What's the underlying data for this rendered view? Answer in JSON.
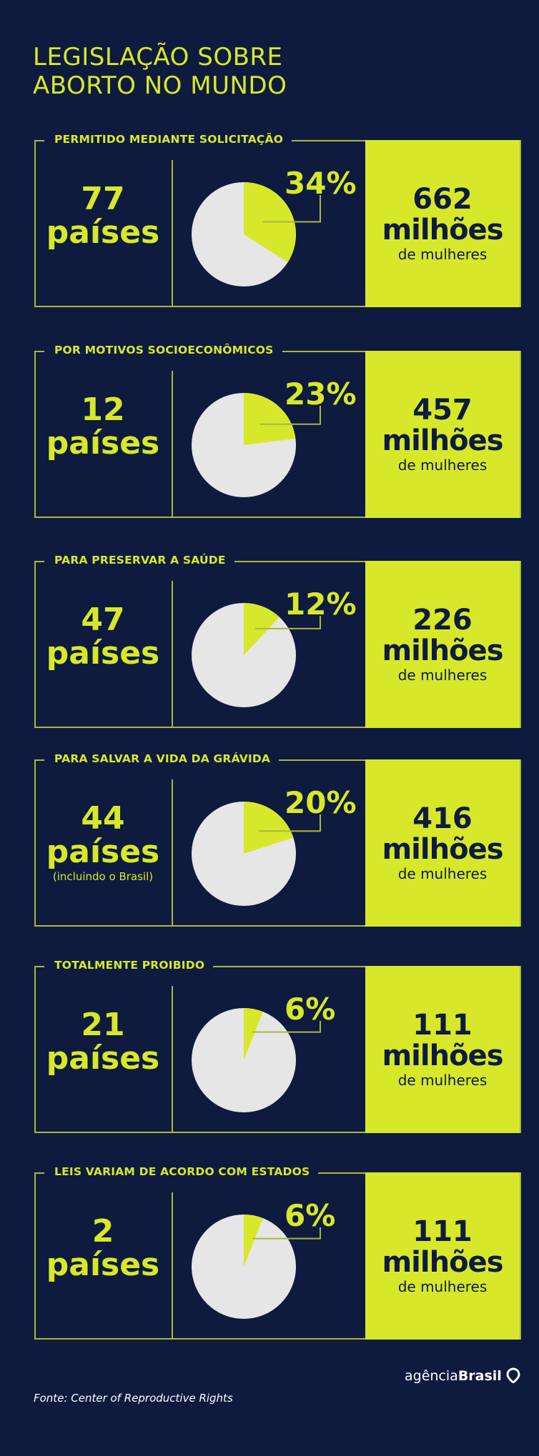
{
  "title_lines": [
    "LEGISLAÇÃO SOBRE",
    "ABORTO NO MUNDO"
  ],
  "colors": {
    "background": "#0e1b3f",
    "accent": "#d7e82a",
    "pie_base": "#e6e6e6",
    "frame": "#a9b83a"
  },
  "chart_data": [
    {
      "type": "pie",
      "category": "PERMITIDO MEDIANTE SOLICITAÇÃO",
      "countries": "77",
      "countries_unit": "países",
      "note": "",
      "percent": 34,
      "percent_label": "34%",
      "women": "662",
      "women_unit": "milhões",
      "women_suffix": "de mulheres"
    },
    {
      "type": "pie",
      "category": "POR MOTIVOS SOCIOECONÔMICOS",
      "countries": "12",
      "countries_unit": "países",
      "note": "",
      "percent": 23,
      "percent_label": "23%",
      "women": "457",
      "women_unit": "milhões",
      "women_suffix": "de mulheres"
    },
    {
      "type": "pie",
      "category": "PARA PRESERVAR A SAÚDE",
      "countries": "47",
      "countries_unit": "países",
      "note": "",
      "percent": 12,
      "percent_label": "12%",
      "women": "226",
      "women_unit": "milhões",
      "women_suffix": "de mulheres"
    },
    {
      "type": "pie",
      "category": "PARA SALVAR A VIDA DA GRÁVIDA",
      "countries": "44",
      "countries_unit": "países",
      "note": "(incluindo o Brasil)",
      "percent": 20,
      "percent_label": "20%",
      "women": "416",
      "women_unit": "milhões",
      "women_suffix": "de mulheres"
    },
    {
      "type": "pie",
      "category": "TOTALMENTE PROIBIDO",
      "countries": "21",
      "countries_unit": "países",
      "note": "",
      "percent": 6,
      "percent_label": "6%",
      "women": "111",
      "women_unit": "milhões",
      "women_suffix": "de mulheres"
    },
    {
      "type": "pie",
      "category": "LEIS VARIAM DE ACORDO COM ESTADOS",
      "countries": "2",
      "countries_unit": "países",
      "note": "",
      "percent": 6,
      "percent_label": "6%",
      "women": "111",
      "women_unit": "milhões",
      "women_suffix": "de mulheres"
    }
  ],
  "footer": {
    "logo_light": "agência",
    "logo_bold": "Brasil",
    "source": "Fonte: Center of Reproductive Rights"
  }
}
